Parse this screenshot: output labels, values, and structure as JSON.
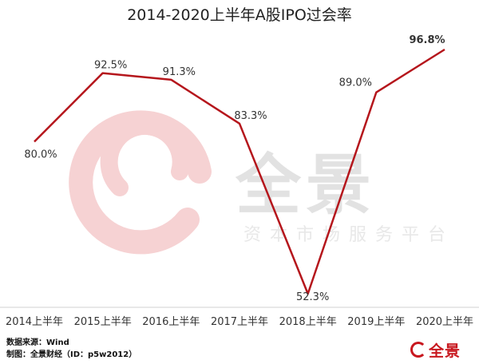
{
  "chart_data": {
    "type": "line",
    "title": "2014-2020上半年A股IPO过会率",
    "categories": [
      "2014上半年",
      "2015上半年",
      "2016上半年",
      "2017上半年",
      "2018上半年",
      "2019上半年",
      "2020上半年"
    ],
    "series": [
      {
        "values": [
          80.0,
          92.5,
          91.3,
          83.3,
          52.3,
          89.0,
          96.8
        ]
      }
    ],
    "value_labels": [
      "80.0%",
      "92.5%",
      "91.3%",
      "83.3%",
      "52.3%",
      "89.0%",
      "96.8%"
    ],
    "line_color": "#b5161c",
    "legend": false,
    "grid": false
  },
  "footer": {
    "source": "数据来源：Wind",
    "credit": "制图：全景财经（ID：p5w2012）"
  },
  "watermark": {
    "brand": "全景",
    "subtitle": "资本市场服务平台"
  },
  "logo": {
    "name": "全景"
  }
}
